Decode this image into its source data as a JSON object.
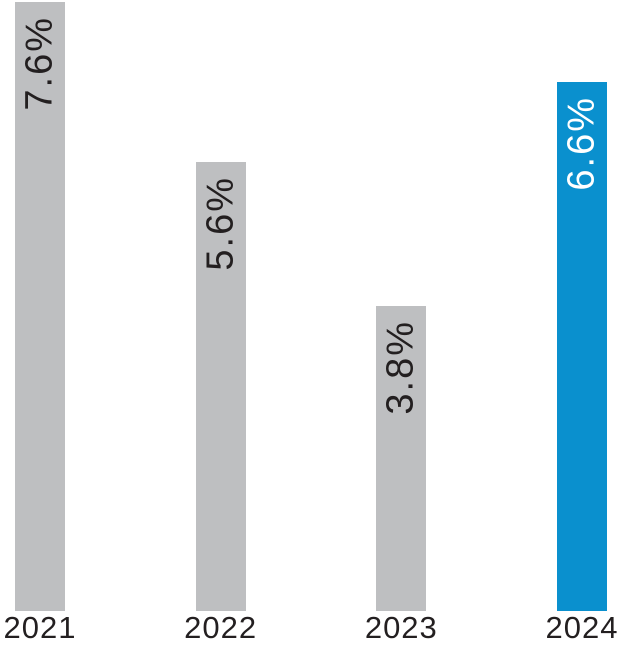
{
  "chart_data": {
    "type": "bar",
    "categories": [
      "2021",
      "2022",
      "2023",
      "2024"
    ],
    "values": [
      7.6,
      5.6,
      3.8,
      6.6
    ],
    "value_labels": [
      "7.6%",
      "5.6%",
      "3.8%",
      "6.6%"
    ],
    "ylim": [
      0,
      7.65
    ],
    "grid": false,
    "legend": false,
    "axes_visible": false,
    "value_label_position": "inside-top",
    "value_label_orientation": "rotated-90-reading-bottom-to-top",
    "bar_colors": [
      "#bebfc1",
      "#bebfc1",
      "#bebfc1",
      "#0a90ce"
    ],
    "value_label_colors": [
      "#231f20",
      "#231f20",
      "#231f20",
      "#ffffff"
    ]
  },
  "colors": {
    "bar_gray": "#bebfc1",
    "bar_highlight_blue": "#0a90ce",
    "text_dark": "#231f20",
    "background": "#ffffff"
  }
}
